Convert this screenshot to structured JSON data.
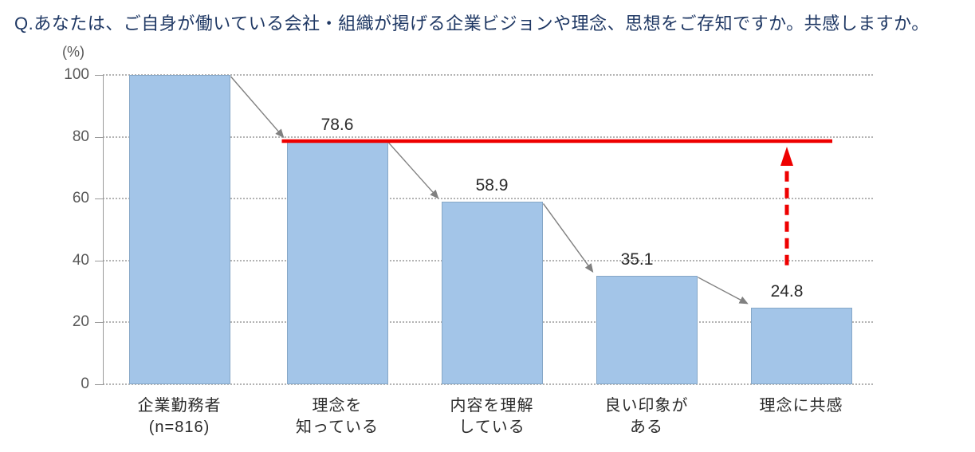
{
  "title": "Q.あなたは、ご自身が働いている会社・組織が掲げる企業ビジョンや理念、思想をご存知ですか。共感しますか。",
  "chart_data": {
    "type": "bar",
    "title": "Q.あなたは、ご自身が働いている会社・組織が掲げる企業ビジョンや理念、思想をご存知ですか。共感しますか。",
    "unit_label": "(%)",
    "categories": [
      "企業勤務者\n(n=816)",
      "理念を\n知っている",
      "内容を理解\nしている",
      "良い印象が\nある",
      "理念に共感"
    ],
    "values": [
      100,
      78.6,
      58.9,
      35.1,
      24.8
    ],
    "bar_labels": [
      "",
      "78.6",
      "58.9",
      "35.1",
      "24.8"
    ],
    "yticks": [
      0,
      20,
      40,
      60,
      80,
      100
    ],
    "ylim": [
      0,
      100
    ],
    "xlabel": "",
    "ylabel": "(%)",
    "grid": "horizontal dotted",
    "legend": "none",
    "annotations": {
      "connector_arrows": "gray arrows from each bar's top-right corner to the next bar's top-left corner",
      "red_reference_line": {
        "value": 78.6,
        "starts_at_bar_index": 1,
        "style": "solid"
      },
      "red_dashed_arrow": {
        "at_bar_index": 4,
        "points_up_to_value": 78.6,
        "style": "dashed, arrowhead at top"
      }
    },
    "colors": {
      "bar_fill": "#A3C5E8",
      "bar_border": "#86A7C7",
      "red": "#EE0000",
      "gridline": "#B3B3B3",
      "connector": "#808080",
      "title_text": "#1F3864",
      "axis_text": "#595959",
      "label_text": "#2B2B2B"
    }
  }
}
